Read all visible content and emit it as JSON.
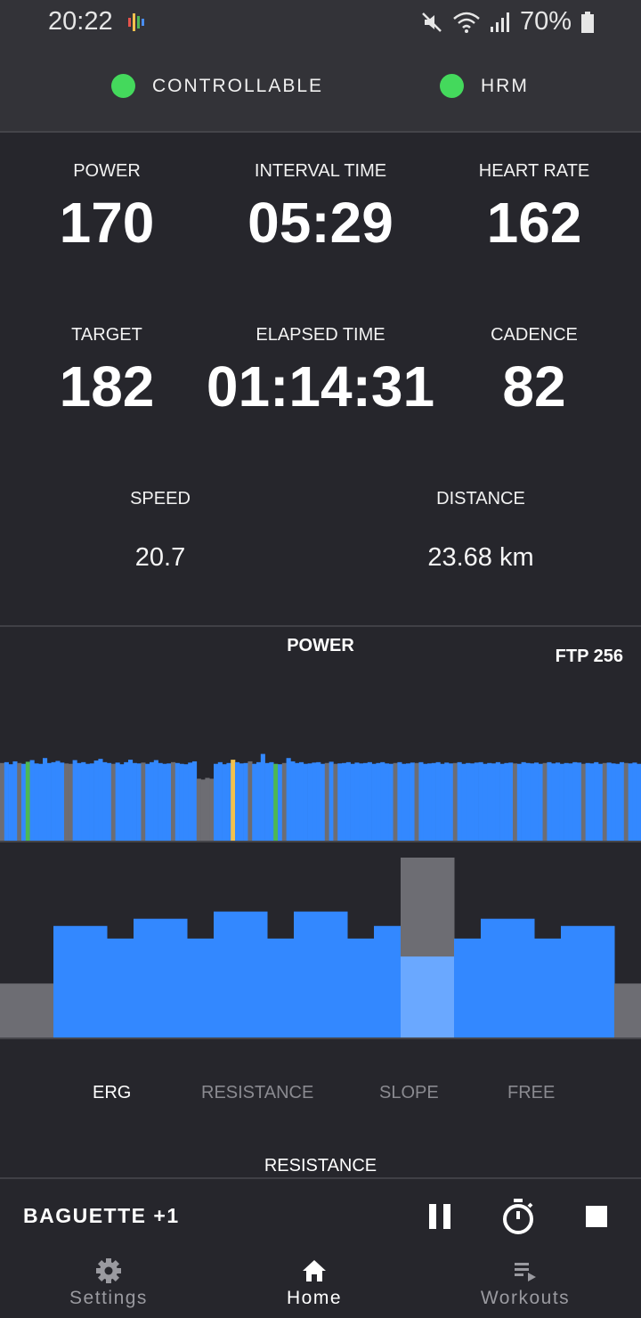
{
  "status_bar": {
    "time": "20:22",
    "battery": "70%",
    "icons": [
      "mute-icon",
      "wifi-icon",
      "signal-icon",
      "battery-icon"
    ]
  },
  "sensors": [
    {
      "label": "CONTROLLABLE",
      "status_color": "#44d95c"
    },
    {
      "label": "HRM",
      "status_color": "#44d95c"
    }
  ],
  "metrics": {
    "power": {
      "label": "POWER",
      "value": "170"
    },
    "interval_time": {
      "label": "INTERVAL TIME",
      "value": "05:29"
    },
    "heart_rate": {
      "label": "HEART RATE",
      "value": "162"
    },
    "target": {
      "label": "TARGET",
      "value": "182"
    },
    "elapsed_time": {
      "label": "ELAPSED TIME",
      "value": "01:14:31"
    },
    "cadence": {
      "label": "CADENCE",
      "value": "82"
    },
    "speed": {
      "label": "SPEED",
      "value": "20.7"
    },
    "distance": {
      "label": "DISTANCE",
      "value": "23.68 km"
    }
  },
  "chart": {
    "title": "POWER",
    "ftp_label": "FTP 256"
  },
  "chart_data": [
    {
      "type": "bar",
      "title": "POWER",
      "annotation": "FTP 256",
      "ftp": 256,
      "ylim": [
        0,
        260
      ],
      "values": [
        188,
        190,
        185,
        192,
        188,
        186,
        191,
        195,
        187,
        186,
        200,
        188,
        190,
        193,
        189,
        187,
        186,
        195,
        188,
        190,
        186,
        187,
        194,
        198,
        190,
        188,
        186,
        189,
        185,
        190,
        196,
        188,
        187,
        189,
        186,
        190,
        195,
        188,
        186,
        187,
        190,
        188,
        186,
        185,
        189,
        192,
        150,
        148,
        152,
        150,
        186,
        190,
        185,
        188,
        196,
        190,
        187,
        188,
        192,
        186,
        190,
        210,
        188,
        190,
        186,
        185,
        188,
        200,
        192,
        188,
        190,
        186,
        187,
        189,
        190,
        186,
        188,
        191,
        186,
        187,
        188,
        190,
        186,
        189,
        187,
        188,
        190,
        186,
        188,
        190,
        187,
        186,
        188,
        190,
        186,
        187,
        189,
        188,
        190,
        186,
        187,
        188,
        190,
        186,
        189,
        187,
        188,
        190,
        186,
        188,
        187,
        189,
        190,
        186,
        188,
        187,
        190,
        186,
        188,
        189,
        187,
        186,
        190,
        188,
        187,
        189,
        186,
        188,
        190,
        187,
        189,
        186,
        188,
        187,
        190,
        189,
        186,
        188,
        187,
        190,
        186,
        188,
        189,
        187,
        186,
        190,
        188,
        187,
        189,
        186
      ],
      "series_colors": {
        "power": "#3388ff",
        "zone_low": "#6d6d73",
        "zone_tempo": "#4db854",
        "zone_peak": "#f2c14e"
      }
    },
    {
      "type": "bar",
      "title": "Workout intervals",
      "values": [
        0.3,
        0.62,
        0.55,
        0.66,
        0.55,
        0.7,
        0.55,
        0.7,
        0.55,
        0.62,
        1.0,
        0.55,
        0.66,
        0.55,
        0.62,
        0.3
      ],
      "current_interval": 10,
      "colors": {
        "done": "#3388ff",
        "current": "#6aa8ff",
        "remaining": "#6d6d73"
      }
    }
  ],
  "modes": {
    "items": [
      "ERG",
      "RESISTANCE",
      "SLOPE",
      "FREE"
    ],
    "active": "ERG",
    "caption": "RESISTANCE"
  },
  "controls": {
    "workout_name": "BAGUETTE +1",
    "buttons": [
      "pause-icon",
      "stopwatch-icon",
      "stop-icon"
    ]
  },
  "nav": {
    "settings": "Settings",
    "home": "Home",
    "workouts": "Workouts",
    "active": "Home"
  }
}
